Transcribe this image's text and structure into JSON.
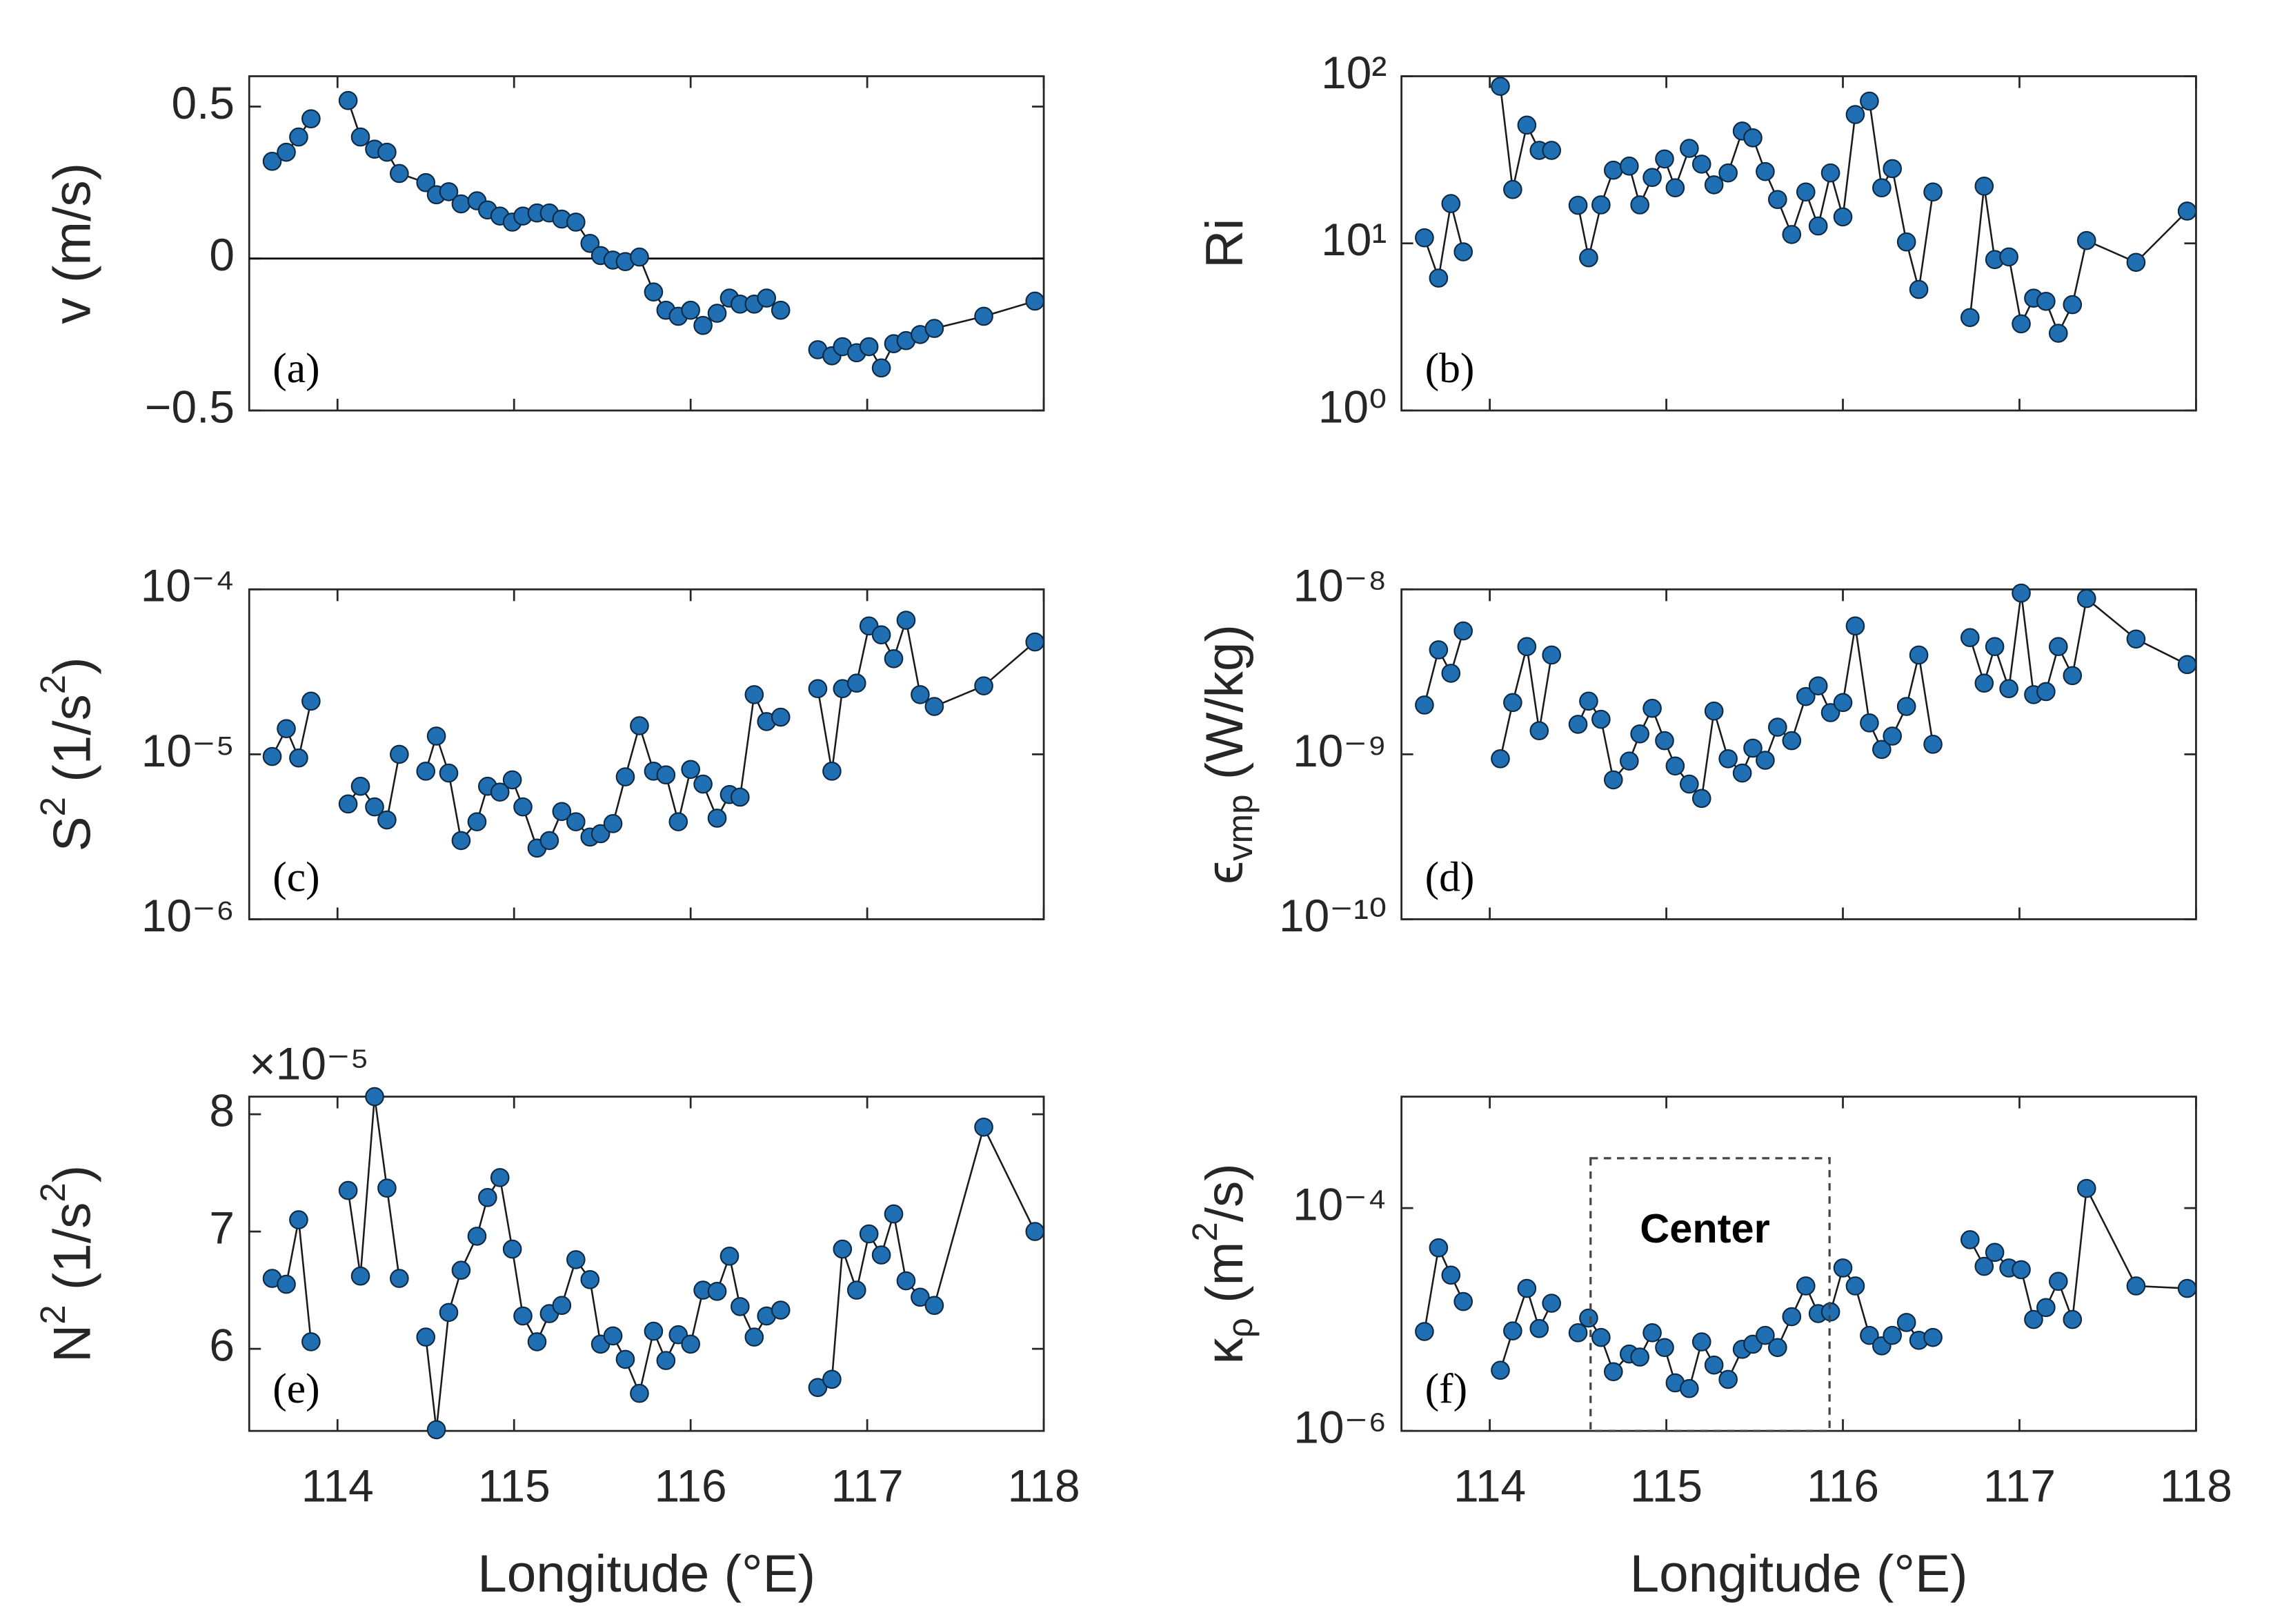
{
  "chart_data": [
    {
      "type": "line",
      "label": "(a)",
      "marker": "circle",
      "color": "#1f6fb2",
      "ylabel": [
        {
          "text": "v (m/s)"
        }
      ],
      "xlim": [
        113.5,
        118
      ],
      "ylim": [
        -0.5,
        0.6
      ],
      "yticks": [
        {
          "value": -0.5,
          "label": "−0.5"
        },
        0,
        0.5
      ],
      "reference_lines": [
        0
      ],
      "x": [
        113.63,
        113.71,
        113.78,
        113.85,
        null,
        114.06,
        114.13,
        114.21,
        114.28,
        114.35,
        114.5,
        114.56,
        114.63,
        114.7,
        114.79,
        114.85,
        114.92,
        114.99,
        115.05,
        115.13,
        115.2,
        115.27,
        115.35,
        115.43,
        115.49,
        115.56,
        115.63,
        115.71,
        115.79,
        115.86,
        115.93,
        116.0,
        116.07,
        116.15,
        116.22,
        116.28,
        116.36,
        116.43,
        116.51,
        null,
        116.72,
        116.8,
        116.86,
        116.94,
        117.01,
        117.08,
        117.15,
        117.22,
        117.3,
        117.38,
        117.66,
        117.95
      ],
      "values": [
        0.32,
        0.35,
        0.4,
        0.46,
        null,
        0.52,
        0.4,
        0.36,
        0.35,
        0.28,
        0.25,
        0.21,
        0.22,
        0.18,
        0.19,
        0.16,
        0.14,
        0.12,
        0.14,
        0.15,
        0.15,
        0.13,
        0.12,
        0.05,
        0.01,
        -0.005,
        -0.01,
        0.005,
        -0.11,
        -0.17,
        -0.19,
        -0.17,
        -0.22,
        -0.18,
        -0.13,
        -0.15,
        -0.15,
        -0.13,
        -0.17,
        null,
        -0.3,
        -0.32,
        -0.29,
        -0.31,
        -0.29,
        -0.36,
        -0.28,
        -0.27,
        -0.25,
        -0.23,
        -0.19,
        -0.14
      ]
    },
    {
      "type": "line",
      "label": "(b)",
      "marker": "circle",
      "color": "#1f6fb2",
      "yscale": "log",
      "ylabel": [
        {
          "text": "Ri"
        }
      ],
      "xlim": [
        113.5,
        118
      ],
      "ylim": [
        1,
        100
      ],
      "yticks": [
        {
          "value": 1,
          "label": "10⁰"
        },
        {
          "value": 10,
          "label": "10¹"
        },
        {
          "value": 100,
          "label": "10²"
        }
      ],
      "x": [
        113.63,
        113.71,
        113.78,
        113.85,
        null,
        114.06,
        114.13,
        114.21,
        114.28,
        114.35,
        null,
        114.5,
        114.56,
        114.63,
        114.7,
        114.79,
        114.85,
        114.92,
        114.99,
        115.05,
        115.13,
        115.2,
        115.27,
        115.35,
        115.43,
        115.49,
        115.56,
        115.63,
        115.71,
        115.79,
        115.86,
        115.93,
        116.0,
        116.07,
        116.15,
        116.22,
        116.28,
        116.36,
        116.43,
        116.51,
        null,
        116.72,
        116.8,
        116.86,
        116.94,
        117.01,
        117.08,
        117.15,
        117.22,
        117.3,
        117.38,
        117.66,
        117.95
      ],
      "values": [
        10.8,
        6.2,
        17.3,
        8.9,
        null,
        87,
        21,
        51,
        36,
        36,
        null,
        16.9,
        8.2,
        17,
        27.4,
        29,
        17,
        24.8,
        32,
        21.5,
        37,
        29.8,
        22.4,
        26.4,
        47,
        42.8,
        26.9,
        18.3,
        11.3,
        20.3,
        12.7,
        26.4,
        14.4,
        59,
        71,
        21.5,
        28,
        10.2,
        5.3,
        20.3,
        null,
        3.6,
        22,
        8,
        8.3,
        3.3,
        4.7,
        4.5,
        2.9,
        4.3,
        10.4,
        7.7,
        15.6
      ]
    },
    {
      "type": "line",
      "label": "(c)",
      "marker": "circle",
      "color": "#1f6fb2",
      "yscale": "log",
      "ylabel": [
        {
          "text": "S"
        },
        {
          "text": "2",
          "shift": "sup"
        },
        {
          "text": " (1/s"
        },
        {
          "text": "2",
          "shift": "sup"
        },
        {
          "text": ")"
        }
      ],
      "xlim": [
        113.5,
        118
      ],
      "ylim": [
        1e-06,
        0.0001
      ],
      "yticks": [
        {
          "value": 1e-06,
          "label": "10⁻⁶"
        },
        {
          "value": 1e-05,
          "label": "10⁻⁵"
        },
        {
          "value": 0.0001,
          "label": "10⁻⁴"
        }
      ],
      "x": [
        113.63,
        113.71,
        113.78,
        113.85,
        null,
        114.06,
        114.13,
        114.21,
        114.28,
        114.35,
        null,
        114.5,
        114.56,
        114.63,
        114.7,
        114.79,
        114.85,
        114.92,
        114.99,
        115.05,
        115.13,
        115.2,
        115.27,
        115.35,
        115.43,
        115.49,
        115.56,
        115.63,
        115.71,
        115.79,
        115.86,
        115.93,
        116.0,
        116.07,
        116.15,
        116.22,
        116.28,
        116.36,
        116.43,
        116.51,
        null,
        116.72,
        116.8,
        116.86,
        116.94,
        117.01,
        117.08,
        117.15,
        117.22,
        117.3,
        117.38,
        117.66,
        117.95
      ],
      "values": [
        9.7e-06,
        1.43e-05,
        9.5e-06,
        2.1e-05,
        null,
        5e-06,
        6.4e-06,
        4.8e-06,
        4e-06,
        1e-05,
        null,
        7.9e-06,
        1.29e-05,
        7.7e-06,
        3e-06,
        3.9e-06,
        6.4e-06,
        5.9e-06,
        7e-06,
        4.8e-06,
        2.7e-06,
        3e-06,
        4.5e-06,
        3.9e-06,
        3.15e-06,
        3.3e-06,
        3.8e-06,
        7.3e-06,
        1.49e-05,
        7.9e-06,
        7.5e-06,
        3.9e-06,
        8.1e-06,
        6.6e-06,
        4.1e-06,
        5.7e-06,
        5.5e-06,
        2.3e-05,
        1.58e-05,
        1.68e-05,
        null,
        2.5e-05,
        7.9e-06,
        2.5e-05,
        2.7e-05,
        6e-05,
        5.3e-05,
        3.8e-05,
        6.5e-05,
        2.3e-05,
        1.95e-05,
        2.6e-05,
        4.8e-05
      ]
    },
    {
      "type": "line",
      "label": "(d)",
      "marker": "circle",
      "color": "#1f6fb2",
      "yscale": "log",
      "ylabel": [
        {
          "text": "ϵ"
        },
        {
          "text": "vmp",
          "shift": "sub"
        },
        {
          "text": " (W/kg)"
        }
      ],
      "xlim": [
        113.5,
        118
      ],
      "ylim": [
        1e-10,
        1e-08
      ],
      "yticks": [
        {
          "value": 1e-10,
          "label": "10⁻¹⁰"
        },
        {
          "value": 1e-09,
          "label": "10⁻⁹"
        },
        {
          "value": 1e-08,
          "label": "10⁻⁸"
        }
      ],
      "x": [
        113.63,
        113.71,
        113.78,
        113.85,
        null,
        114.06,
        114.13,
        114.21,
        114.28,
        114.35,
        null,
        114.5,
        114.56,
        114.63,
        114.7,
        114.79,
        114.85,
        114.92,
        114.99,
        115.05,
        115.13,
        115.2,
        115.27,
        115.35,
        115.43,
        115.49,
        115.56,
        115.63,
        115.71,
        115.79,
        115.86,
        115.93,
        116.0,
        116.07,
        116.15,
        116.22,
        116.28,
        116.36,
        116.43,
        116.51,
        null,
        116.72,
        116.8,
        116.86,
        116.94,
        117.01,
        117.08,
        117.15,
        117.22,
        117.3,
        117.38,
        117.66,
        117.95
      ],
      "values": [
        1.99e-09,
        4.3e-09,
        3.1e-09,
        5.6e-09,
        null,
        9.4e-10,
        2.06e-09,
        4.5e-09,
        1.39e-09,
        4e-09,
        null,
        1.52e-09,
        2.1e-09,
        1.63e-09,
        7e-10,
        9.1e-10,
        1.33e-09,
        1.9e-09,
        1.21e-09,
        8.5e-10,
        6.6e-10,
        5.4e-10,
        1.83e-09,
        9.4e-10,
        7.7e-10,
        1.09e-09,
        9.2e-10,
        1.46e-09,
        1.21e-09,
        2.24e-09,
        2.6e-09,
        1.79e-09,
        2.06e-09,
        6e-09,
        1.55e-09,
        1.07e-09,
        1.29e-09,
        1.95e-09,
        4e-09,
        1.15e-09,
        null,
        5.1e-09,
        2.7e-09,
        4.5e-09,
        2.5e-09,
        9.5e-09,
        2.3e-09,
        2.4e-09,
        4.5e-09,
        3e-09,
        8.8e-09,
        5e-09,
        3.5e-09
      ]
    },
    {
      "type": "line",
      "label": "(e)",
      "marker": "circle",
      "color": "#1f6fb2",
      "ylabel": [
        {
          "text": "N"
        },
        {
          "text": "2",
          "shift": "sup"
        },
        {
          "text": " (1/s"
        },
        {
          "text": "2",
          "shift": "sup"
        },
        {
          "text": ")"
        }
      ],
      "multiplier": "×10⁻⁵",
      "xlabel": "Longitude (°E)",
      "xlim": [
        113.5,
        118
      ],
      "xticks": [
        114,
        115,
        116,
        117,
        118
      ],
      "ylim": [
        5.3,
        8.15
      ],
      "yticks": [
        6,
        7,
        8
      ],
      "x": [
        113.63,
        113.71,
        113.78,
        113.85,
        null,
        114.06,
        114.13,
        114.21,
        114.28,
        114.35,
        null,
        114.5,
        114.56,
        114.63,
        114.7,
        114.79,
        114.85,
        114.92,
        114.99,
        115.05,
        115.13,
        115.2,
        115.27,
        115.35,
        115.43,
        115.49,
        115.56,
        115.63,
        115.71,
        115.79,
        115.86,
        115.93,
        116.0,
        116.07,
        116.15,
        116.22,
        116.28,
        116.36,
        116.43,
        116.51,
        null,
        116.72,
        116.8,
        116.86,
        116.94,
        117.01,
        117.08,
        117.15,
        117.22,
        117.3,
        117.38,
        117.66,
        117.95
      ],
      "values": [
        6.6,
        6.55,
        7.1,
        6.06,
        null,
        7.35,
        6.62,
        8.15,
        7.37,
        6.6,
        null,
        6.1,
        5.31,
        6.31,
        6.67,
        6.96,
        7.29,
        7.46,
        6.85,
        6.28,
        6.06,
        6.3,
        6.37,
        6.76,
        6.59,
        6.04,
        6.11,
        5.91,
        5.62,
        6.15,
        5.9,
        6.12,
        6.04,
        6.5,
        6.49,
        6.79,
        6.36,
        6.1,
        6.28,
        6.33,
        null,
        5.67,
        5.74,
        6.85,
        6.5,
        6.98,
        6.8,
        7.15,
        6.58,
        6.44,
        6.37,
        7.89,
        7.0
      ]
    },
    {
      "type": "line",
      "label": "(f)",
      "marker": "circle",
      "color": "#1f6fb2",
      "yscale": "log",
      "ylabel": [
        {
          "text": "κ"
        },
        {
          "text": "ρ",
          "shift": "sub"
        },
        {
          "text": " (m"
        },
        {
          "text": "2",
          "shift": "sup"
        },
        {
          "text": "/s)"
        }
      ],
      "annotation": "Center",
      "xlabel": "Longitude (°E)",
      "xlim": [
        113.5,
        118
      ],
      "xticks": [
        114,
        115,
        116,
        117,
        118
      ],
      "ylim": [
        1e-06,
        0.001
      ],
      "yticks": [
        {
          "value": 1e-06,
          "label": "10⁻⁶"
        },
        {
          "value": 0.0001,
          "label": "10⁻⁴"
        }
      ],
      "x": [
        113.63,
        113.71,
        113.78,
        113.85,
        null,
        114.06,
        114.13,
        114.21,
        114.28,
        114.35,
        null,
        114.5,
        114.56,
        114.63,
        114.7,
        114.79,
        114.85,
        114.92,
        114.99,
        115.05,
        115.13,
        115.2,
        115.27,
        115.35,
        115.43,
        115.49,
        115.56,
        115.63,
        115.71,
        115.79,
        115.86,
        115.93,
        116.0,
        116.07,
        116.15,
        116.22,
        116.28,
        116.36,
        116.43,
        116.51,
        null,
        116.72,
        116.8,
        116.86,
        116.94,
        117.01,
        117.08,
        117.15,
        117.22,
        117.3,
        117.38,
        117.66,
        117.95
      ],
      "values": [
        7.8e-06,
        4.4e-05,
        2.5e-05,
        1.45e-05,
        null,
        3.5e-06,
        7.9e-06,
        1.9e-05,
        8.3e-06,
        1.4e-05,
        null,
        7.6e-06,
        1.03e-05,
        6.9e-06,
        3.4e-06,
        4.9e-06,
        4.6e-06,
        7.6e-06,
        5.6e-06,
        2.7e-06,
        2.4e-06,
        6.3e-06,
        3.9e-06,
        2.9e-06,
        5.4e-06,
        6e-06,
        7.2e-06,
        5.6e-06,
        1.06e-05,
        2e-05,
        1.13e-05,
        1.17e-05,
        2.9e-05,
        2e-05,
        7.2e-06,
        5.8e-06,
        7.2e-06,
        9.4e-06,
        6.5e-06,
        6.9e-06,
        null,
        5.2e-05,
        3e-05,
        4e-05,
        2.9e-05,
        2.8e-05,
        1e-05,
        1.28e-05,
        2.2e-05,
        1e-05,
        0.00015,
        2e-05,
        1.9e-05
      ]
    }
  ]
}
